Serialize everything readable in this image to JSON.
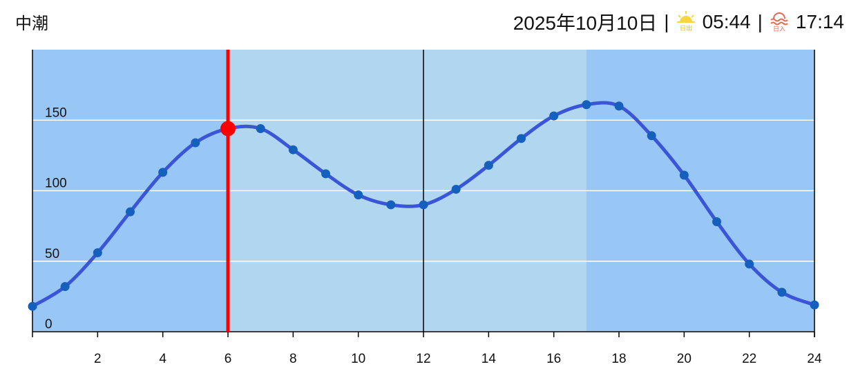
{
  "header": {
    "tide": "中潮",
    "date": "2025年10月10日",
    "separator": "|",
    "sunrise_icon": "日出",
    "sunrise": "05:44",
    "sunset_icon": "日入",
    "sunset": "17:14"
  },
  "chart_data": {
    "type": "line",
    "x": [
      0,
      1,
      2,
      3,
      4,
      5,
      6,
      7,
      8,
      9,
      10,
      11,
      12,
      13,
      14,
      15,
      16,
      17,
      18,
      19,
      20,
      21,
      22,
      23,
      24
    ],
    "series": [
      {
        "color": "#3a55d8",
        "values": [
          18,
          32,
          56,
          85,
          113,
          134,
          144,
          144,
          129,
          112,
          97,
          90,
          90,
          101,
          118,
          137,
          153,
          161,
          160,
          139,
          111,
          78,
          48,
          28,
          19
        ]
      }
    ],
    "marker_color": "#1560bd",
    "xlim": [
      0,
      24
    ],
    "xticks": [
      2,
      4,
      6,
      8,
      10,
      12,
      14,
      16,
      18,
      20,
      22,
      24
    ],
    "ylim": [
      0,
      200
    ],
    "yticks": [
      0,
      50,
      100,
      150
    ],
    "grid": true,
    "night_color": "#99c7f5",
    "day_color": "#b0d7ef",
    "daylight": [
      6,
      17
    ],
    "reference_x": 12,
    "current_x": 6,
    "current_color": "#ff0000"
  }
}
